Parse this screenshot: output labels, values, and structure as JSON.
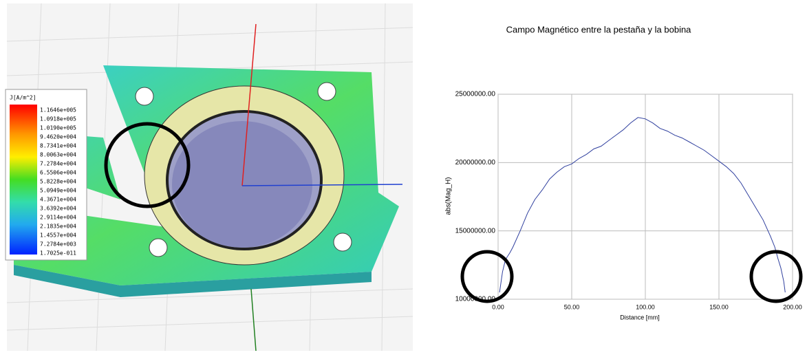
{
  "colormap": {
    "title": "J[A/m^2]",
    "labels": [
      "1.1646e+005",
      "1.0918e+005",
      "1.0190e+005",
      "9.4620e+004",
      "8.7341e+004",
      "8.0063e+004",
      "7.2784e+004",
      "6.5506e+004",
      "5.8228e+004",
      "5.0949e+004",
      "4.3671e+004",
      "3.6392e+004",
      "2.9114e+004",
      "2.1835e+004",
      "1.4557e+004",
      "7.2784e+003",
      "1.7025e-011"
    ]
  },
  "chart_data": {
    "type": "line",
    "title": "Campo Magnético entre la pestaña y la bobina",
    "x_label": "Distance [mm]",
    "y_label": "abs(Mag_H)",
    "color": "#2f3f9e",
    "grid": true,
    "x": [
      1,
      3,
      5,
      8,
      10,
      15,
      20,
      25,
      30,
      35,
      40,
      45,
      50,
      55,
      60,
      65,
      70,
      75,
      80,
      85,
      90,
      95,
      100,
      105,
      110,
      115,
      120,
      125,
      130,
      135,
      140,
      145,
      150,
      155,
      160,
      165,
      170,
      175,
      180,
      185,
      188,
      190,
      192,
      194,
      195
    ],
    "values": [
      10500000,
      12000000,
      12900000,
      13400000,
      13800000,
      15000000,
      16300000,
      17300000,
      18000000,
      18800000,
      19300000,
      19700000,
      19900000,
      20300000,
      20600000,
      21000000,
      21200000,
      21600000,
      22000000,
      22400000,
      22900000,
      23300000,
      23200000,
      22900000,
      22500000,
      22300000,
      22000000,
      21800000,
      21500000,
      21200000,
      20900000,
      20500000,
      20100000,
      19700000,
      19200000,
      18500000,
      17600000,
      16700000,
      15800000,
      14600000,
      13800000,
      13000000,
      12300000,
      11300000,
      10500000
    ],
    "xlim": [
      0,
      200
    ],
    "ylim": [
      10000000,
      25000000
    ],
    "xticks": [
      {
        "value": 0,
        "label": "0.00"
      },
      {
        "value": 50,
        "label": "50.00"
      },
      {
        "value": 100,
        "label": "100.00"
      },
      {
        "value": 150,
        "label": "150.00"
      },
      {
        "value": 200,
        "label": "200.00"
      }
    ],
    "yticks": [
      {
        "value": 10000000,
        "label": "10000000.00"
      },
      {
        "value": 15000000,
        "label": "15000000.00"
      },
      {
        "value": 20000000,
        "label": "20000000.00"
      },
      {
        "value": 25000000,
        "label": "25000000.00"
      }
    ]
  }
}
